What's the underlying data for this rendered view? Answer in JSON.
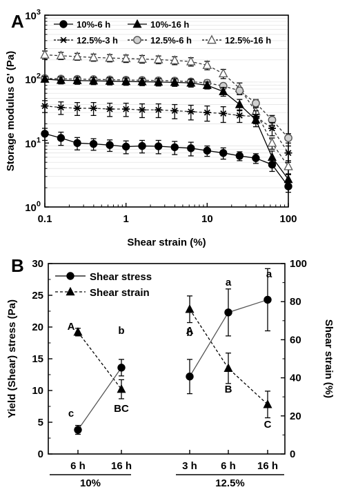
{
  "chart_data": [
    {
      "panel": "A",
      "type": "line",
      "xlabel": "Shear strain (%)",
      "ylabel": "Storage modulus G' (Pa)",
      "x_scale": "log",
      "y_scale": "log",
      "xlim": [
        0.1,
        100
      ],
      "ylim": [
        1,
        1000
      ],
      "x_ticks": [
        "0.1",
        "1",
        "10",
        "100"
      ],
      "y_ticks": [
        "10^0",
        "10^1",
        "10^2",
        "10^3"
      ],
      "grid": "horizontal minor gridlines",
      "legend_position": "top, inside plot",
      "x": [
        0.1,
        0.158,
        0.251,
        0.398,
        0.631,
        1.0,
        1.58,
        2.51,
        3.98,
        6.31,
        10.0,
        15.8,
        25.1,
        39.8,
        63.1,
        100
      ],
      "series": [
        {
          "name": "10%-6 h",
          "marker": "filled-circle",
          "line": "solid",
          "values": [
            14,
            12,
            10,
            9.7,
            9.3,
            8.8,
            9,
            8.9,
            8.6,
            8.3,
            7.6,
            7.0,
            6.3,
            5.8,
            4.6,
            2.1
          ],
          "errors": [
            3,
            2.8,
            2.2,
            2.0,
            1.9,
            2.0,
            2.0,
            2.1,
            2.0,
            2.0,
            1.4,
            1.4,
            1.0,
            1.0,
            1.0,
            0.4
          ]
        },
        {
          "name": "10%-16 h",
          "marker": "filled-triangle",
          "line": "solid",
          "values": [
            100,
            96,
            95,
            94,
            93,
            92,
            91,
            90,
            89,
            87,
            80,
            64,
            40,
            23,
            6,
            2.7
          ],
          "errors": [
            10,
            12,
            12,
            12,
            12,
            12,
            12,
            12,
            12,
            12,
            10,
            10,
            8,
            5,
            1.5,
            0.5
          ]
        },
        {
          "name": "12.5%-3 h",
          "marker": "asterisk",
          "line": "dashed",
          "values": [
            38,
            36,
            35,
            35,
            34,
            34,
            33,
            33,
            32,
            31,
            30,
            29,
            27,
            26,
            17,
            7
          ],
          "errors": [
            8,
            8,
            8,
            8,
            8,
            8,
            8,
            8,
            8,
            8,
            8,
            8,
            6,
            6,
            4,
            2
          ]
        },
        {
          "name": "12.5%-6 h",
          "marker": "open-circle",
          "line": "dashed",
          "values": [
            103,
            101,
            100,
            99,
            98,
            97,
            96,
            95,
            94,
            91,
            87,
            78,
            66,
            42,
            23,
            12
          ],
          "errors": [
            10,
            10,
            10,
            10,
            10,
            10,
            10,
            10,
            10,
            10,
            10,
            8,
            8,
            6,
            4,
            2
          ]
        },
        {
          "name": "12.5%-16 h",
          "marker": "open-triangle",
          "line": "dashed",
          "values": [
            240,
            232,
            225,
            218,
            214,
            210,
            206,
            202,
            196,
            188,
            165,
            122,
            72,
            31,
            10,
            4.3
          ],
          "errors": [
            35,
            30,
            28,
            28,
            28,
            28,
            28,
            28,
            28,
            28,
            25,
            20,
            15,
            6,
            2,
            1
          ]
        }
      ]
    },
    {
      "panel": "B",
      "type": "line",
      "ylabel": "Yield (Shear) stress (Pa)",
      "y2label": "Shear strain (%)",
      "ylim": [
        0,
        30
      ],
      "y2lim": [
        0,
        100
      ],
      "y_ticks": [
        "0",
        "5",
        "10",
        "15",
        "20",
        "25",
        "30"
      ],
      "y2_ticks": [
        "0",
        "20",
        "40",
        "60",
        "80",
        "100"
      ],
      "x_tick_labels": [
        "6 h",
        "16 h",
        "3 h",
        "6 h",
        "16 h"
      ],
      "groups": [
        {
          "label": "10%",
          "categories": [
            "6 h",
            "16 h"
          ]
        },
        {
          "label": "12.5%",
          "categories": [
            "3 h",
            "6 h",
            "16 h"
          ]
        }
      ],
      "legend_position": "top-left",
      "series": [
        {
          "name": "Shear stress",
          "axis": "left",
          "marker": "filled-circle",
          "line": "solid",
          "values": [
            3.8,
            13.6,
            12.2,
            22.3,
            24.3
          ],
          "errors": [
            0.7,
            1.3,
            2.7,
            3.7,
            4.9
          ],
          "letters": [
            "c",
            "b",
            "b",
            "a",
            "a"
          ]
        },
        {
          "name": "Shear strain",
          "axis": "right",
          "marker": "filled-triangle",
          "line": "dashed",
          "values": [
            64,
            34,
            76,
            45,
            26
          ],
          "errors": [
            2,
            5,
            7,
            8,
            7
          ],
          "letters": [
            "A",
            "BC",
            "A",
            "B",
            "C"
          ]
        }
      ]
    }
  ]
}
